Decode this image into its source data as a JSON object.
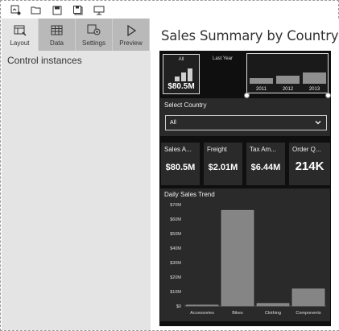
{
  "toolbar": {
    "icons": [
      "new-report-icon",
      "open-folder-icon",
      "save-icon",
      "save-as-icon",
      "publish-icon"
    ]
  },
  "tabs": [
    {
      "id": "layout",
      "label": "Layout",
      "icon": "layout-icon",
      "active": true
    },
    {
      "id": "data",
      "label": "Data",
      "icon": "data-table-icon",
      "active": false
    },
    {
      "id": "settings",
      "label": "Settings",
      "icon": "settings-gear-icon",
      "active": false
    },
    {
      "id": "preview",
      "label": "Preview",
      "icon": "play-icon",
      "active": false
    }
  ],
  "left_pane": {
    "title": "Control instances"
  },
  "page": {
    "title": "Sales Summary by Country and"
  },
  "year_selector": {
    "all": {
      "label": "All",
      "value": "$80.5M",
      "bar_levels": [
        0.35,
        0.6,
        0.9
      ]
    },
    "last_year_label": "Last Year",
    "years": [
      {
        "label": "2011",
        "level": 0.45
      },
      {
        "label": "2012",
        "level": 0.65
      },
      {
        "label": "2013",
        "level": 0.85
      }
    ]
  },
  "country_filter": {
    "label": "Select Country",
    "value": "All"
  },
  "kpis": [
    {
      "label": "Sales A...",
      "value": "$80.5M"
    },
    {
      "label": "Freight",
      "value": "$2.01M"
    },
    {
      "label": "Tax Am...",
      "value": "$6.44M"
    },
    {
      "label": "Order Q...",
      "value": "214K"
    }
  ],
  "colors": {
    "dashboard_bg": "#0f0f0f",
    "tile_bg": "#2a2a2a",
    "pane_bg": "#e4e4e4",
    "tab_bg": "#b9b9b9"
  },
  "chart_data": {
    "type": "bar",
    "title": "Daily Sales Trend",
    "categories": [
      "Accessories",
      "Bikes",
      "Clothing",
      "Components"
    ],
    "values": [
      0.7,
      66.0,
      1.8,
      11.8
    ],
    "yticks": [
      "$0",
      "$10M",
      "$20M",
      "$30M",
      "$40M",
      "$50M",
      "$60M",
      "$70M"
    ],
    "ylim": [
      0,
      70
    ],
    "unit": "$M"
  }
}
